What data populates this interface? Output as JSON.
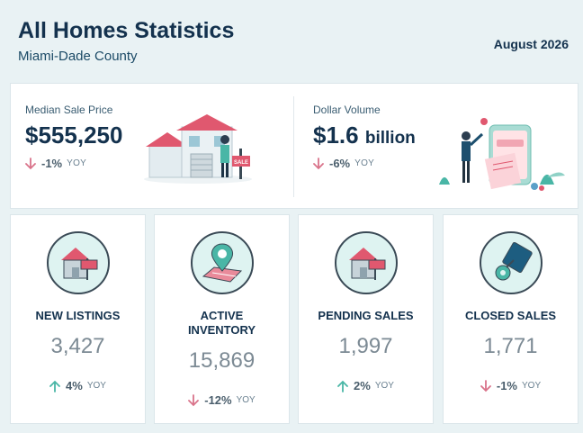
{
  "header": {
    "title": "All Homes Statistics",
    "subtitle": "Miami-Dade County",
    "date": "August 2026"
  },
  "summary": [
    {
      "label": "Median Sale Price",
      "value": "$555,250",
      "unit": "",
      "change": "-1%",
      "yoy": "YOY",
      "direction": "down",
      "illustration": "house-for-sale-illustration"
    },
    {
      "label": "Dollar Volume",
      "value": "$1.6",
      "unit": "billion",
      "change": "-6%",
      "yoy": "YOY",
      "direction": "down",
      "illustration": "phone-payment-illustration"
    }
  ],
  "cards": [
    {
      "label": "NEW LISTINGS",
      "value": "3,427",
      "change": "4%",
      "yoy": "YOY",
      "direction": "up",
      "icon": "house-for-sale-icon"
    },
    {
      "label": "ACTIVE INVENTORY",
      "value": "15,869",
      "change": "-12%",
      "yoy": "YOY",
      "direction": "down",
      "icon": "map-pin-icon"
    },
    {
      "label": "PENDING SALES",
      "value": "1,997",
      "change": "2%",
      "yoy": "YOY",
      "direction": "up",
      "icon": "house-pending-icon"
    },
    {
      "label": "CLOSED SALES",
      "value": "1,771",
      "change": "-1%",
      "yoy": "YOY",
      "direction": "down",
      "icon": "key-icon"
    }
  ],
  "colors": {
    "up": "#49b6a6",
    "down": "#d9738a",
    "accent": "#e0586f",
    "navy": "#14324e"
  }
}
